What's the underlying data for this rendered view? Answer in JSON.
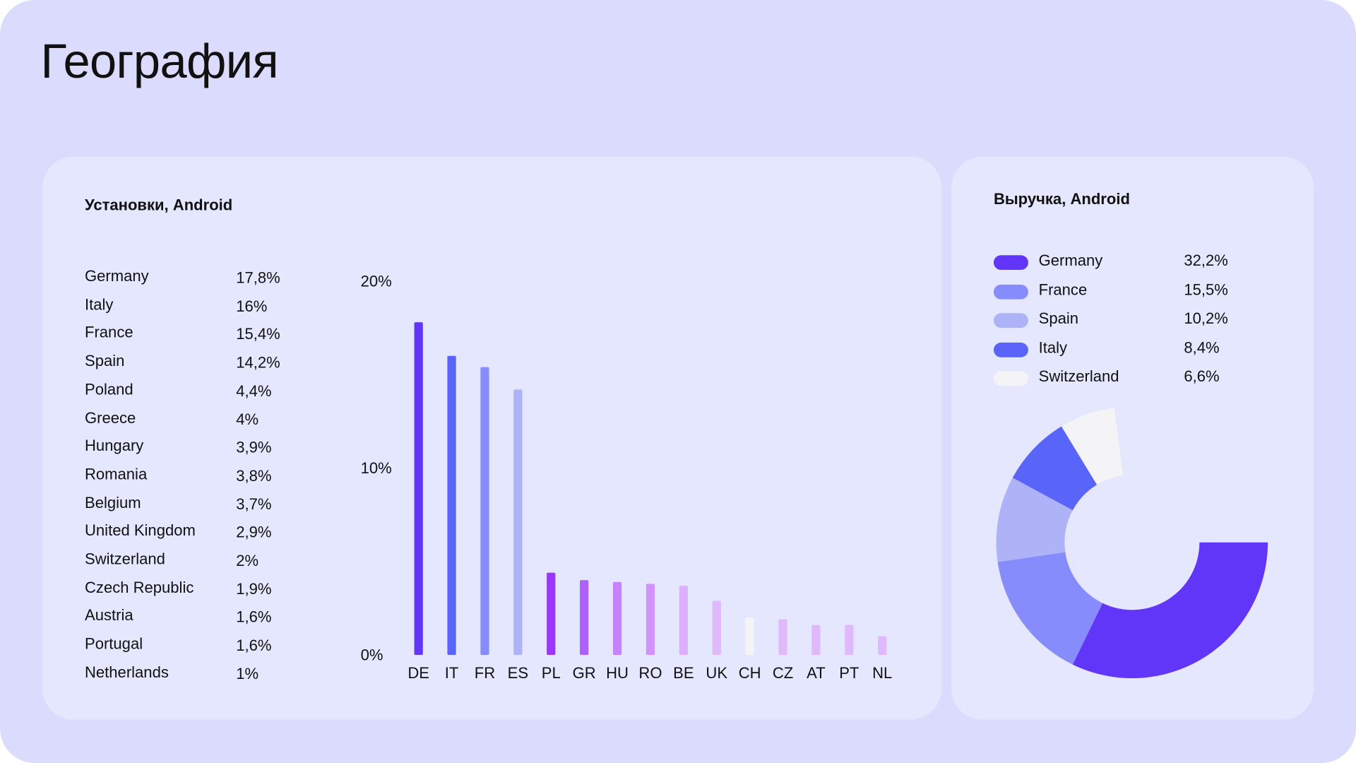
{
  "page_title": "География",
  "installs": {
    "title": "Установки, Android",
    "rows": [
      {
        "country": "Germany",
        "value": "17,8%"
      },
      {
        "country": "Italy",
        "value": "16%"
      },
      {
        "country": "France",
        "value": "15,4%"
      },
      {
        "country": "Spain",
        "value": "14,2%"
      },
      {
        "country": "Poland",
        "value": "4,4%"
      },
      {
        "country": "Greece",
        "value": "4%"
      },
      {
        "country": "Hungary",
        "value": "3,9%"
      },
      {
        "country": "Romania",
        "value": "3,8%"
      },
      {
        "country": "Belgium",
        "value": "3,7%"
      },
      {
        "country": "United Kingdom",
        "value": "2,9%"
      },
      {
        "country": "Switzerland",
        "value": "2%"
      },
      {
        "country": "Czech Republic",
        "value": "1,9%"
      },
      {
        "country": "Austria",
        "value": "1,6%"
      },
      {
        "country": "Portugal",
        "value": "1,6%"
      },
      {
        "country": "Netherlands",
        "value": "1%"
      }
    ]
  },
  "revenue": {
    "title": "Выручка, Android",
    "legend": [
      {
        "country": "Germany",
        "value": "32,2%",
        "color": "#6236f9"
      },
      {
        "country": "France",
        "value": "15,5%",
        "color": "#868cfc"
      },
      {
        "country": "Spain",
        "value": "10,2%",
        "color": "#aeb2f6"
      },
      {
        "country": "Italy",
        "value": "8,4%",
        "color": "#5865f8"
      },
      {
        "country": "Switzerland",
        "value": "6,6%",
        "color": "#f4f4f6"
      }
    ]
  },
  "chart_data": [
    {
      "type": "bar",
      "title": "Установки, Android",
      "categories": [
        "DE",
        "IT",
        "FR",
        "ES",
        "PL",
        "GR",
        "HU",
        "RO",
        "BE",
        "UK",
        "CH",
        "CZ",
        "AT",
        "PT",
        "NL"
      ],
      "values": [
        17.8,
        16,
        15.4,
        14.2,
        4.4,
        4,
        3.9,
        3.8,
        3.7,
        2.9,
        2,
        1.9,
        1.6,
        1.6,
        1
      ],
      "colors": [
        "#6236f9",
        "#5865f8",
        "#868cfc",
        "#aeb2f6",
        "#9b37fb",
        "#ae60ff",
        "#c583fd",
        "#d093fb",
        "#dcb0fc",
        "#dfb9fc",
        "#f4f4f6",
        "#dfb9fc",
        "#dfb9fc",
        "#dfb9fc",
        "#dfb9fc"
      ],
      "ylim": [
        0,
        20
      ],
      "yticks": [
        {
          "v": 0,
          "label": "0%"
        },
        {
          "v": 10,
          "label": "10%"
        },
        {
          "v": 20,
          "label": "20%"
        }
      ],
      "gridlines": [
        0,
        5,
        10,
        15,
        20
      ]
    },
    {
      "type": "pie",
      "title": "Выручка, Android",
      "labels": [
        "Germany",
        "France",
        "Spain",
        "Italy",
        "Switzerland"
      ],
      "values": [
        32.2,
        15.5,
        10.2,
        8.4,
        6.6
      ],
      "colors": [
        "#6236f9",
        "#868cfc",
        "#aeb2f6",
        "#5865f8",
        "#f4f4f6"
      ],
      "donut": true
    }
  ]
}
